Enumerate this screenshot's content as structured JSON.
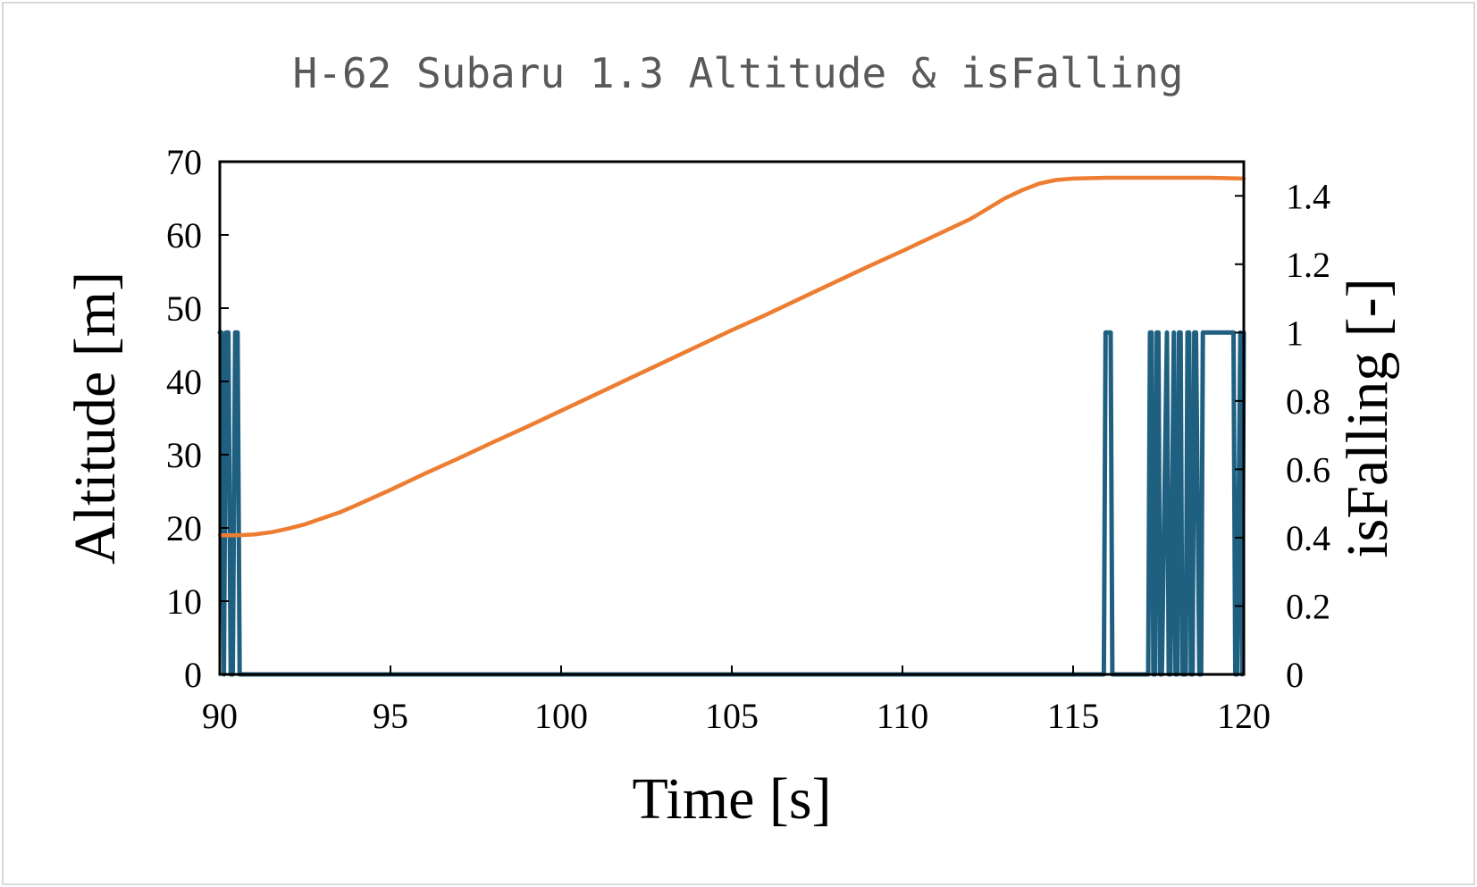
{
  "chart_data": {
    "type": "line",
    "title": "H-62 Subaru 1.3 Altitude & isFalling",
    "xlabel": "Time [s]",
    "ylabel": "Altitude [m]",
    "y2label": "isFalling [-]",
    "xlim": [
      90,
      120
    ],
    "ylim": [
      0,
      70
    ],
    "y2lim": [
      0,
      1.5
    ],
    "x_ticks": [
      "90",
      "95",
      "100",
      "105",
      "110",
      "115",
      "120"
    ],
    "y_ticks": [
      "0",
      "10",
      "20",
      "30",
      "40",
      "50",
      "60",
      "70"
    ],
    "y2_ticks": [
      "0",
      "0.2",
      "0.4",
      "0.6",
      "0.8",
      "1",
      "1.2",
      "1.4"
    ],
    "grid": false,
    "legend": "none",
    "colors": {
      "altitude": "#ed7d31",
      "isFalling": "#1f6080"
    },
    "series": [
      {
        "axis": "left",
        "x": [
          90,
          90.5,
          91,
          91.5,
          92,
          92.5,
          93,
          93.5,
          94,
          95,
          96,
          97,
          98,
          99,
          100,
          101,
          102,
          103,
          104,
          105,
          106,
          107,
          108,
          109,
          110,
          111,
          112,
          112.5,
          113,
          113.5,
          114,
          114.5,
          115,
          116,
          117,
          118,
          119,
          120
        ],
        "y": [
          19,
          19,
          19.1,
          19.4,
          19.9,
          20.5,
          21.3,
          22.1,
          23.1,
          25.2,
          27.4,
          29.5,
          31.7,
          33.8,
          36.0,
          38.2,
          40.4,
          42.6,
          44.8,
          47.0,
          49.1,
          51.3,
          53.5,
          55.7,
          57.8,
          60.0,
          62.2,
          63.6,
          65.0,
          66.1,
          67.0,
          67.5,
          67.7,
          67.8,
          67.8,
          67.8,
          67.8,
          67.7
        ]
      },
      {
        "axis": "right",
        "x": [
          90,
          90.05,
          90.12,
          90.18,
          90.25,
          90.32,
          90.38,
          90.45,
          90.52,
          90.58,
          90.65,
          90.72,
          115.9,
          115.95,
          116.0,
          116.1,
          116.15,
          116.3,
          116.4,
          117.2,
          117.25,
          117.3,
          117.35,
          117.4,
          117.45,
          117.5,
          117.55,
          117.6,
          117.75,
          117.8,
          117.85,
          117.95,
          118.0,
          118.05,
          118.1,
          118.15,
          118.2,
          118.3,
          118.35,
          118.4,
          118.45,
          118.5,
          118.55,
          118.6,
          118.7,
          118.75,
          118.8,
          118.85,
          118.9,
          119.0,
          119.05,
          119.1,
          119.4,
          119.45,
          119.5,
          119.7,
          119.75,
          119.8,
          119.9,
          119.95,
          120.0
        ],
        "y": [
          1,
          1,
          0,
          1,
          1,
          0,
          0,
          1,
          1,
          0,
          0,
          0,
          0,
          1,
          1,
          1,
          0,
          0,
          0,
          0,
          1,
          1,
          0,
          0,
          1,
          1,
          0,
          0,
          1,
          0,
          0,
          1,
          0,
          0,
          1,
          1,
          0,
          0,
          1,
          1,
          0,
          0,
          1,
          1,
          0,
          0,
          1,
          1,
          1,
          1,
          1,
          1,
          1,
          1,
          1,
          1,
          0,
          0,
          1,
          0,
          1
        ]
      }
    ]
  }
}
